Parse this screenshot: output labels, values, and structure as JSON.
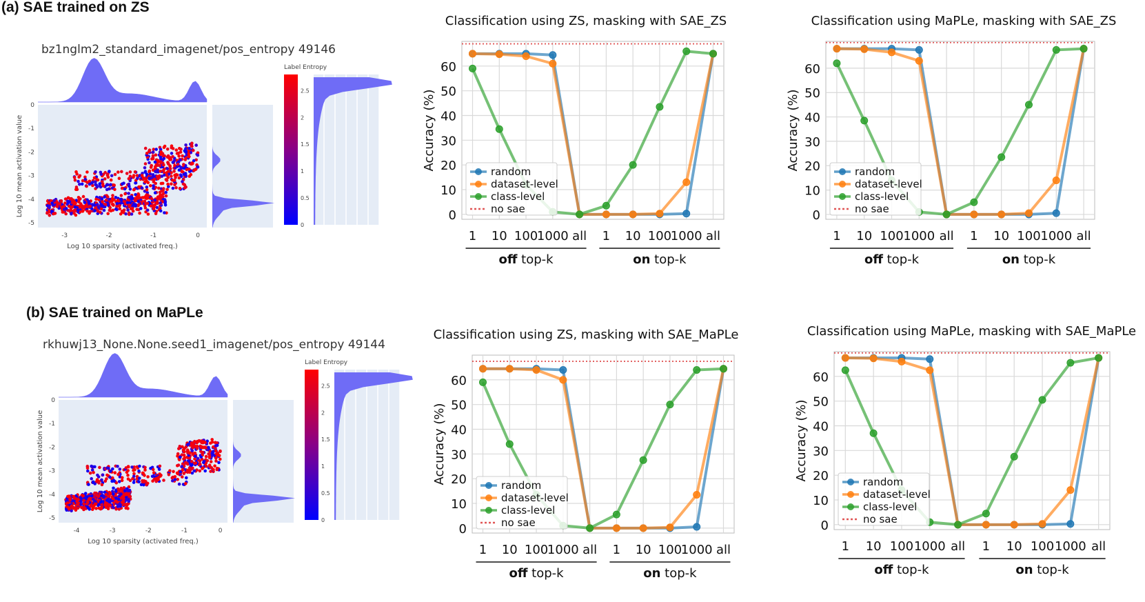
{
  "section_a": {
    "title": "(a) SAE trained on ZS"
  },
  "section_b": {
    "title": "(b) SAE trained on MaPLe"
  },
  "scatter_a": {
    "title": "bz1nglm2_standard_imagenet/pos_entropy 49146",
    "xlabel": "Log 10 sparsity (activated freq.)",
    "ylabel": "Log 10 mean activation value",
    "xticks": [
      "-3",
      "-2",
      "-1",
      "0"
    ],
    "yticks": [
      "0",
      "-1",
      "-2",
      "-3",
      "-4",
      "-5"
    ],
    "colorbar_title": "Label Entropy",
    "colorbar_ticks": [
      "2.5",
      "2",
      "1.5",
      "1",
      "0.5",
      "0"
    ],
    "colors": {
      "low": "#0000ff",
      "high": "#ff0000",
      "hist": "#6f6cf6",
      "bg": "#e5ecf6"
    }
  },
  "scatter_b": {
    "title": "rkhuwj13_None.None.seed1_imagenet/pos_entropy 49144",
    "xlabel": "Log 10 sparsity (activated freq.)",
    "ylabel": "Log 10 mean activation value",
    "xticks": [
      "-4",
      "-3",
      "-2",
      "-1",
      "0"
    ],
    "yticks": [
      "0",
      "-1",
      "-2",
      "-3",
      "-4",
      "-5"
    ],
    "colorbar_title": "Label Entropy",
    "colorbar_ticks": [
      "2.5",
      "2",
      "1.5",
      "1",
      "0.5",
      "0"
    ],
    "colors": {
      "low": "#0000ff",
      "high": "#ff0000",
      "hist": "#6f6cf6",
      "bg": "#e5ecf6"
    }
  },
  "chart_data": [
    {
      "type": "line",
      "title": "Classification using ZS, masking with SAE_ZS",
      "ylabel": "Accuracy (%)",
      "categories": [
        "1",
        "10",
        "100",
        "1000",
        "all",
        "1",
        "10",
        "100",
        "1000",
        "all"
      ],
      "groups": [
        {
          "label_bold": "off",
          "label_rest": " top-k"
        },
        {
          "label_bold": "on",
          "label_rest": " top-k"
        }
      ],
      "ylim": [
        -2,
        70
      ],
      "yticks": [
        "0",
        "10",
        "20",
        "30",
        "40",
        "50",
        "60"
      ],
      "no_sae": 69,
      "series": [
        {
          "name": "random",
          "color": "#1f77b4",
          "values": [
            65,
            65,
            65,
            64.5,
            0,
            0,
            0,
            0,
            0.3,
            65
          ]
        },
        {
          "name": "dataset-level",
          "color": "#ff7f0e",
          "values": [
            65,
            64.8,
            64,
            61,
            0,
            0,
            0,
            0.3,
            13,
            65
          ]
        },
        {
          "name": "class-level",
          "color": "#2ca02c",
          "values": [
            59,
            34.5,
            12,
            1,
            0,
            3.5,
            20,
            43.5,
            66,
            65
          ]
        }
      ],
      "legend": [
        "random",
        "dataset-level",
        "class-level",
        "no sae"
      ],
      "legend_position": "lower-left",
      "grid": true
    },
    {
      "type": "line",
      "title": "Classification using MaPLe, masking with SAE_ZS",
      "ylabel": "Accuracy (%)",
      "categories": [
        "1",
        "10",
        "100",
        "1000",
        "all",
        "1",
        "10",
        "100",
        "1000",
        "all"
      ],
      "groups": [
        {
          "label_bold": "off",
          "label_rest": " top-k"
        },
        {
          "label_bold": "on",
          "label_rest": " top-k"
        }
      ],
      "ylim": [
        -2,
        71
      ],
      "yticks": [
        "0",
        "10",
        "20",
        "30",
        "40",
        "50",
        "60"
      ],
      "no_sae": 70.5,
      "series": [
        {
          "name": "random",
          "color": "#1f77b4",
          "values": [
            68,
            68,
            68,
            67.5,
            0,
            0,
            0,
            0,
            0.5,
            68
          ]
        },
        {
          "name": "dataset-level",
          "color": "#ff7f0e",
          "values": [
            68,
            67.8,
            66.5,
            63,
            0,
            0,
            0,
            0.5,
            14,
            68
          ]
        },
        {
          "name": "class-level",
          "color": "#2ca02c",
          "values": [
            62,
            38.5,
            14,
            1,
            0,
            5,
            23.5,
            45,
            67.5,
            68
          ]
        }
      ],
      "legend": [
        "random",
        "dataset-level",
        "class-level",
        "no sae"
      ],
      "legend_position": "lower-left",
      "grid": true
    },
    {
      "type": "line",
      "title": "Classification using ZS, masking with SAE_MaPLe",
      "ylabel": "Accuracy (%)",
      "categories": [
        "1",
        "10",
        "100",
        "1000",
        "all",
        "1",
        "10",
        "100",
        "1000",
        "all"
      ],
      "groups": [
        {
          "label_bold": "off",
          "label_rest": " top-k"
        },
        {
          "label_bold": "on",
          "label_rest": " top-k"
        }
      ],
      "ylim": [
        -2,
        70
      ],
      "yticks": [
        "0",
        "10",
        "20",
        "30",
        "40",
        "50",
        "60"
      ],
      "no_sae": 67.5,
      "series": [
        {
          "name": "random",
          "color": "#1f77b4",
          "values": [
            64.5,
            64.5,
            64.5,
            64,
            0,
            0,
            0,
            0,
            0.5,
            64.5
          ]
        },
        {
          "name": "dataset-level",
          "color": "#ff7f0e",
          "values": [
            64.5,
            64.5,
            64,
            60,
            0,
            0,
            0,
            0.3,
            13.5,
            64.5
          ]
        },
        {
          "name": "class-level",
          "color": "#2ca02c",
          "values": [
            59,
            34,
            13.5,
            1,
            0,
            5.5,
            27.5,
            50,
            64,
            64.5
          ]
        }
      ],
      "legend": [
        "random",
        "dataset-level",
        "class-level",
        "no sae"
      ],
      "legend_position": "lower-left",
      "grid": true
    },
    {
      "type": "line",
      "title": "Classification using MaPLe, masking with SAE_MaPLe",
      "ylabel": "Accuracy (%)",
      "categories": [
        "1",
        "10",
        "100",
        "1000",
        "all",
        "1",
        "10",
        "100",
        "1000",
        "all"
      ],
      "groups": [
        {
          "label_bold": "off",
          "label_rest": " top-k"
        },
        {
          "label_bold": "on",
          "label_rest": " top-k"
        }
      ],
      "ylim": [
        -2,
        70
      ],
      "yticks": [
        "0",
        "10",
        "20",
        "30",
        "40",
        "50",
        "60"
      ],
      "no_sae": 69.5,
      "series": [
        {
          "name": "random",
          "color": "#1f77b4",
          "values": [
            67.5,
            67.5,
            67.5,
            67,
            0,
            0,
            0,
            0,
            0.3,
            67.5
          ]
        },
        {
          "name": "dataset-level",
          "color": "#ff7f0e",
          "values": [
            67.5,
            67.3,
            66,
            62.5,
            0,
            0,
            0,
            0.3,
            14,
            67.5
          ]
        },
        {
          "name": "class-level",
          "color": "#2ca02c",
          "values": [
            62.5,
            37,
            14,
            1,
            0,
            4.5,
            27.5,
            50.5,
            65.5,
            67.5
          ]
        }
      ],
      "legend": [
        "random",
        "dataset-level",
        "class-level",
        "no sae"
      ],
      "legend_position": "lower-left",
      "grid": true
    }
  ]
}
